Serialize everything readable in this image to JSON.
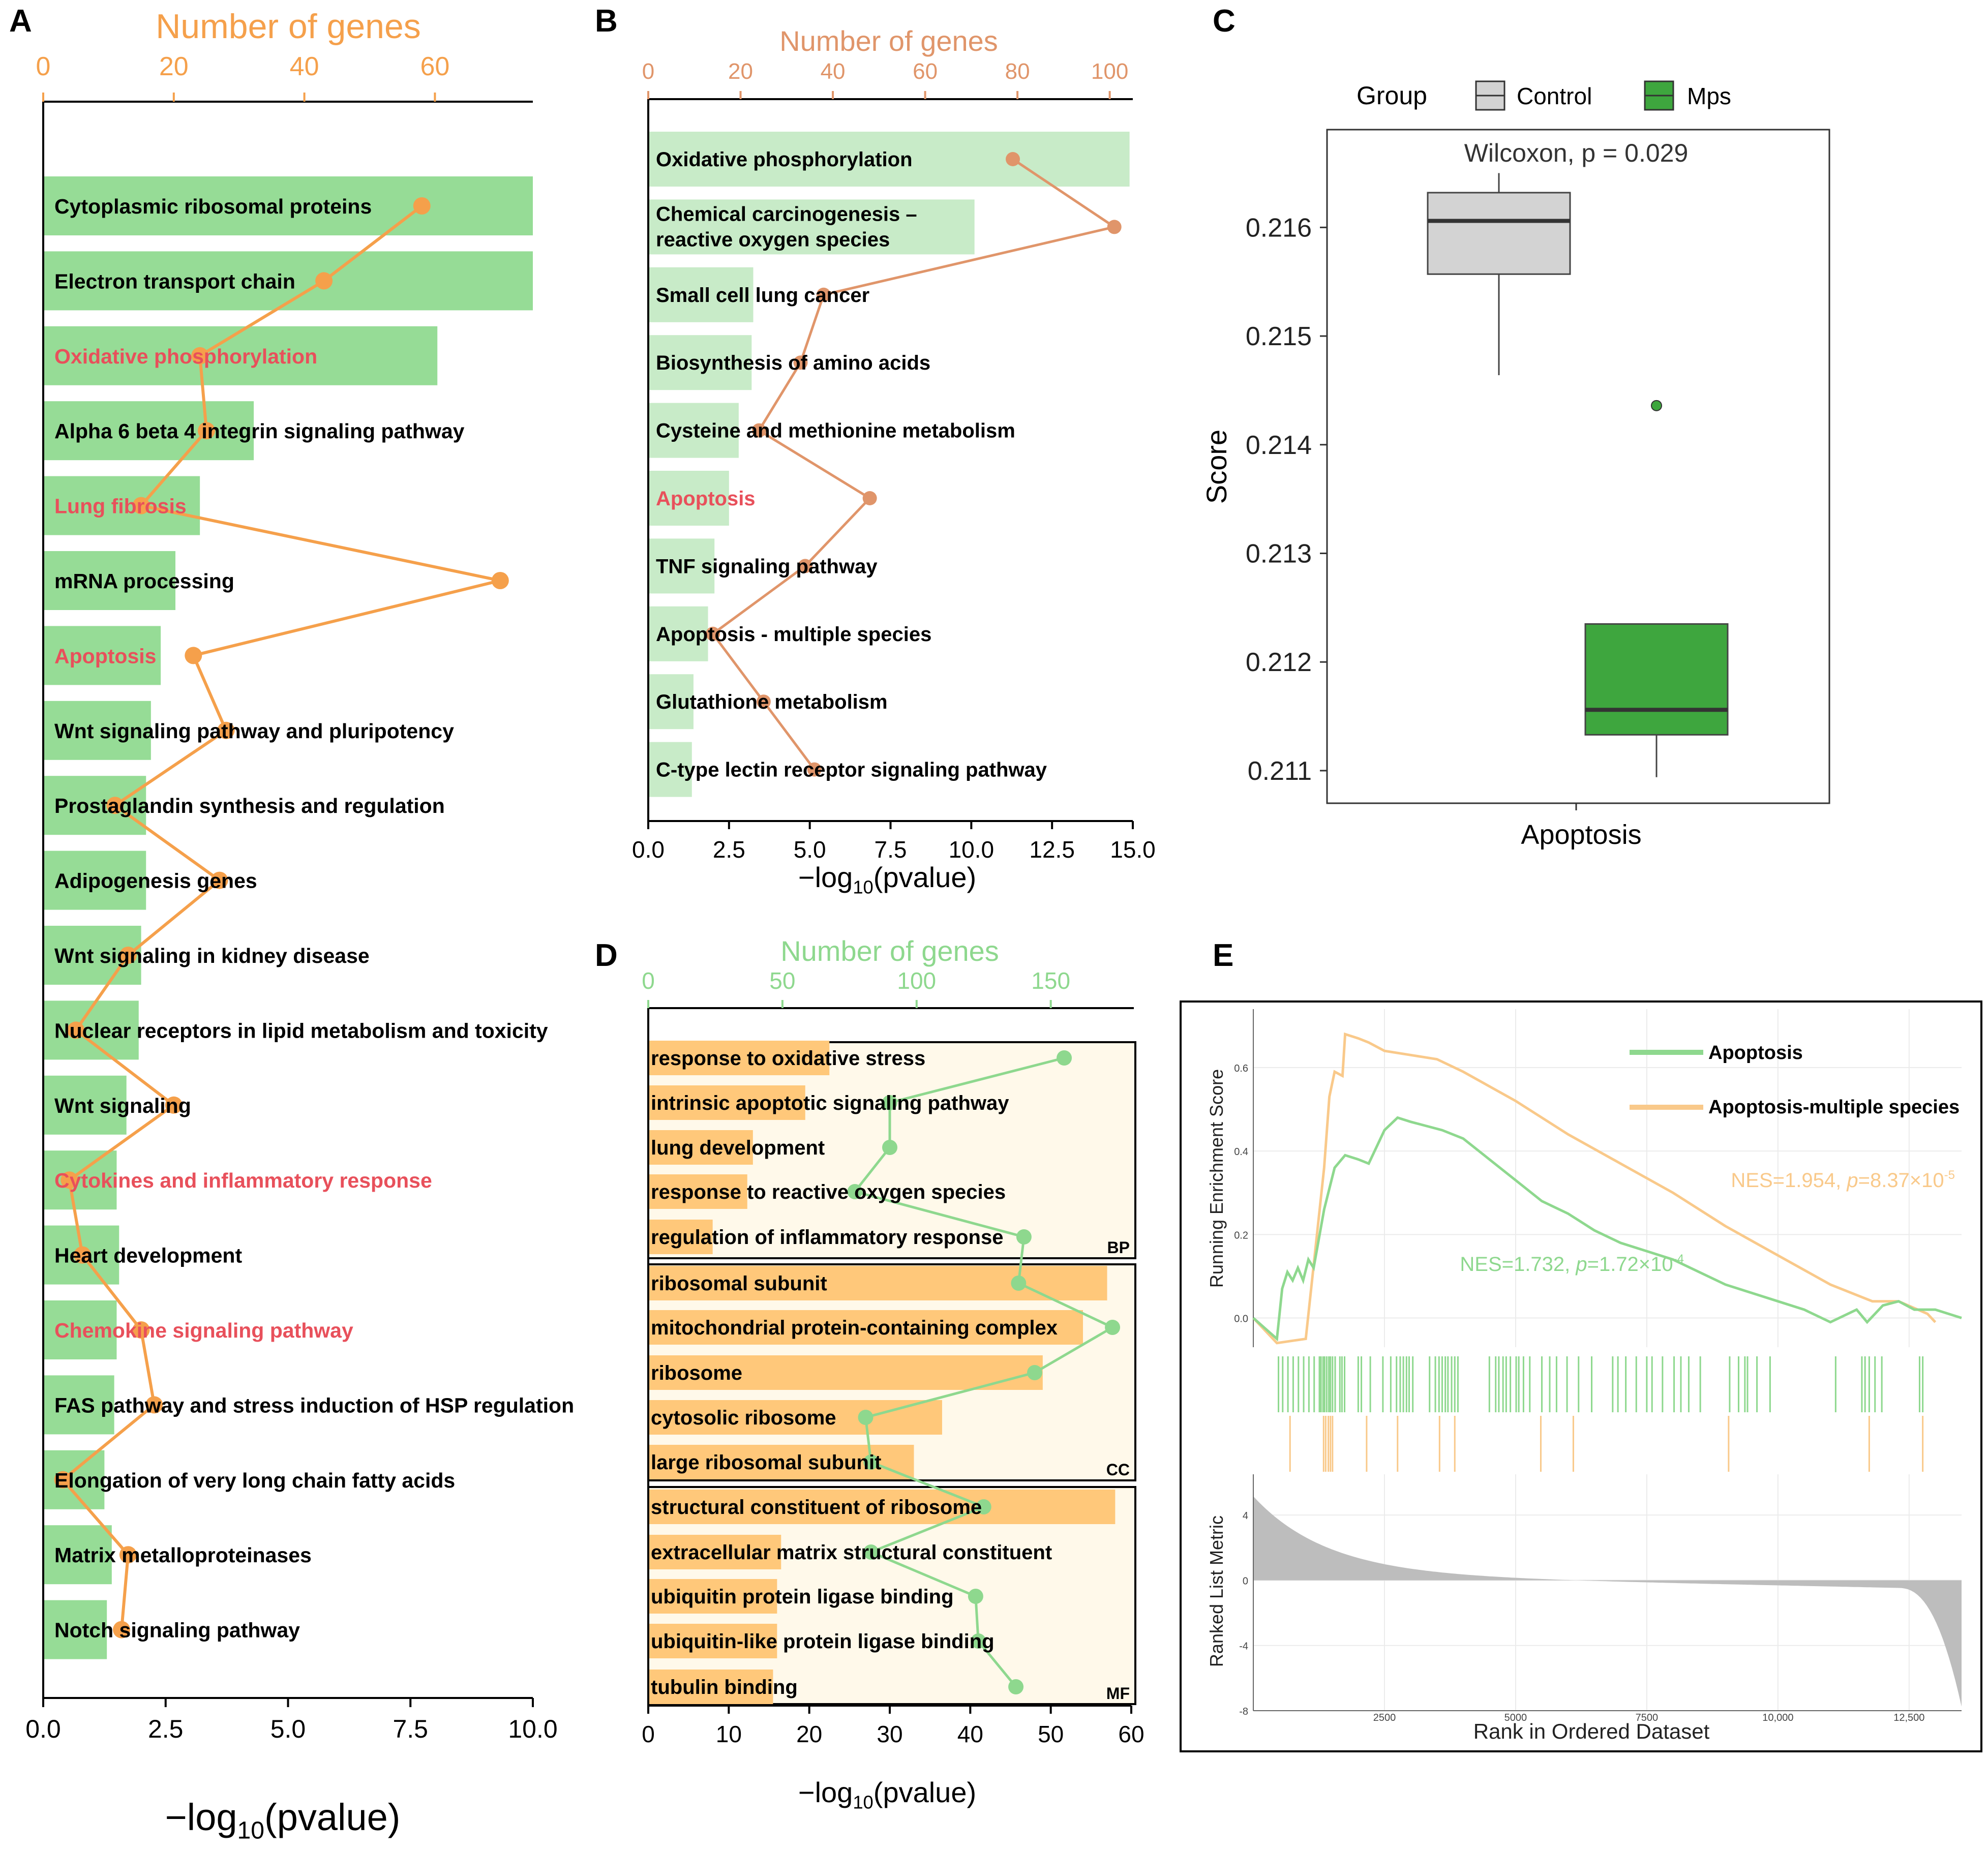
{
  "panels": {
    "A": {
      "letter": "A"
    },
    "B": {
      "letter": "B"
    },
    "C": {
      "letter": "C"
    },
    "D": {
      "letter": "D"
    },
    "E": {
      "letter": "E"
    }
  },
  "colors": {
    "bar_green": "#96DC96",
    "bar_green_light": "#C8EBC8",
    "bar_orange": "#FFC87A",
    "line_orange": "#F5A04B",
    "line_orange_b": "#E0956A",
    "line_green": "#8ED88E",
    "highlight_red": "#E8505B",
    "box_grey": "#D3D3D3",
    "box_green": "#3EA63E",
    "panel_d_bg": "#FFF9EA",
    "gsea_green": "#8ED88E",
    "gsea_orange": "#F9C98A"
  },
  "chart_data": [
    {
      "id": "A",
      "type": "bar",
      "orientation": "horizontal",
      "xlabel": "−log10(pvalue)",
      "top_axis_label": "Number of genes",
      "xlim": [
        0,
        10
      ],
      "x_ticks": [
        "0.0",
        "2.5",
        "5.0",
        "7.5",
        "10.0"
      ],
      "top_lim": [
        0,
        75
      ],
      "top_ticks": [
        "0",
        "20",
        "40",
        "60"
      ],
      "categories": [
        "Cytoplasmic ribosomal proteins",
        "Electron transport chain",
        "Oxidative phosphorylation",
        "Alpha 6 beta 4 integrin signaling pathway",
        "Lung fibrosis",
        "mRNA processing",
        "Apoptosis",
        "Wnt signaling pathway and pluripotency",
        "Prostaglandin synthesis and regulation",
        "Adipogenesis genes",
        "Wnt signaling in kidney disease",
        "Nuclear receptors in lipid metabolism and toxicity",
        "Wnt signaling",
        "Cytokines and inflammatory response",
        "Heart development",
        "Chemokine signaling pathway",
        "FAS pathway and stress induction of HSP regulation",
        "Elongation of very long chain fatty acids",
        "Matrix metalloproteinases",
        "Notch signaling pathway"
      ],
      "highlighted": [
        false,
        false,
        true,
        false,
        true,
        false,
        true,
        false,
        false,
        false,
        false,
        false,
        false,
        true,
        false,
        true,
        false,
        false,
        false,
        false
      ],
      "series": [
        {
          "name": "−log10(pvalue)",
          "values": [
            10.0,
            10.0,
            8.05,
            4.3,
            3.2,
            2.7,
            2.4,
            2.2,
            2.1,
            2.1,
            2.0,
            1.95,
            1.7,
            1.5,
            1.55,
            1.5,
            1.45,
            1.25,
            1.4,
            1.3
          ]
        },
        {
          "name": "Number of genes",
          "values": [
            58,
            43,
            24,
            25,
            15,
            70,
            23,
            28,
            11,
            27,
            13,
            5,
            20,
            4,
            6,
            15,
            17,
            3,
            13,
            12
          ]
        }
      ]
    },
    {
      "id": "B",
      "type": "bar",
      "orientation": "horizontal",
      "xlabel": "−log10(pvalue)",
      "top_axis_label": "Number of genes",
      "xlim": [
        0,
        15
      ],
      "x_ticks": [
        "0.0",
        "2.5",
        "5.0",
        "7.5",
        "10.0",
        "12.5",
        "15.0"
      ],
      "top_lim": [
        0,
        105
      ],
      "top_ticks": [
        "0",
        "20",
        "40",
        "60",
        "80",
        "100"
      ],
      "categories": [
        "Oxidative phosphorylation",
        "Chemical carcinogenesis –\nreactive oxygen species",
        "Small cell lung cancer",
        "Biosynthesis of amino acids",
        "Cysteine and methionine metabolism",
        "Apoptosis",
        "TNF signaling pathway",
        "Apoptosis - multiple species",
        "Glutathione metabolism",
        "C-type lectin receptor signaling pathway"
      ],
      "highlighted": [
        false,
        false,
        false,
        false,
        false,
        true,
        false,
        false,
        false,
        false
      ],
      "series": [
        {
          "name": "−log10(pvalue)",
          "values": [
            14.9,
            10.1,
            3.25,
            3.2,
            2.8,
            2.5,
            2.05,
            1.85,
            1.4,
            1.35
          ]
        },
        {
          "name": "Number of genes",
          "values": [
            79,
            101,
            38,
            33,
            24,
            48,
            34,
            14,
            25,
            36
          ]
        }
      ]
    },
    {
      "id": "C",
      "type": "box",
      "ylabel": "Score",
      "xlabel": "Apoptosis",
      "legend_title": "Group",
      "annotation": "Wilcoxon, p = 0.029",
      "ylim": [
        0.2107,
        0.2169
      ],
      "y_ticks": [
        "0.211",
        "0.212",
        "0.213",
        "0.214",
        "0.215",
        "0.216"
      ],
      "y_tick_values": [
        0.211,
        0.212,
        0.213,
        0.214,
        0.215,
        0.216
      ],
      "groups": [
        {
          "name": "Control",
          "min": 0.21464,
          "q1": 0.21557,
          "median": 0.21606,
          "q3": 0.21632,
          "max": 0.2165,
          "outliers": []
        },
        {
          "name": "Mps",
          "min": 0.21094,
          "q1": 0.21133,
          "median": 0.21156,
          "q3": 0.21235,
          "max": 0.21235,
          "outliers": [
            0.21436
          ]
        }
      ]
    },
    {
      "id": "D",
      "type": "bar",
      "orientation": "horizontal",
      "xlabel": "−log10(pvalue)",
      "top_axis_label": "Number of genes",
      "xlim": [
        0,
        60
      ],
      "x_ticks": [
        "0",
        "10",
        "20",
        "30",
        "40",
        "50",
        "60"
      ],
      "top_lim": [
        0,
        180
      ],
      "top_ticks": [
        "0",
        "50",
        "100",
        "150"
      ],
      "groups": [
        {
          "label": "BP",
          "categories": [
            "response to oxidative stress",
            "intrinsic apoptotic signaling pathway",
            "lung development",
            "response to reactive oxygen species",
            "regulation of inflammatory response"
          ],
          "values": [
            22.5,
            19.5,
            13.0,
            12.3,
            8.0
          ],
          "genes": [
            155,
            90,
            90,
            77,
            140
          ]
        },
        {
          "label": "CC",
          "categories": [
            "ribosomal subunit",
            "mitochondrial protein-containing complex",
            "ribosome",
            "cytosolic ribosome",
            "large ribosomal subunit"
          ],
          "values": [
            57.0,
            54.0,
            49.0,
            36.5,
            33.0
          ],
          "genes": [
            138,
            173,
            144,
            81,
            83
          ]
        },
        {
          "label": "MF",
          "categories": [
            "structural constituent of ribosome",
            "extracellular matrix structural constituent",
            "ubiquitin protein ligase binding",
            "ubiquitin-like protein ligase binding",
            "tubulin binding"
          ],
          "values": [
            58.0,
            16.5,
            16.0,
            16.0,
            15.5
          ],
          "genes": [
            125,
            83,
            122,
            123,
            137
          ]
        }
      ]
    },
    {
      "id": "E",
      "type": "line",
      "ylabel_top": "Running Enrichment Score",
      "ylabel_bottom": "Ranked List Metric",
      "xlabel": "Rank in Ordered Dataset",
      "x_ticks": [
        "2500",
        "5000",
        "7500",
        "10,000",
        "12,500"
      ],
      "x_tick_values": [
        2500,
        5000,
        7500,
        10000,
        12500
      ],
      "xlim": [
        0,
        13500
      ],
      "es_ticks": [
        "0.0",
        "0.2",
        "0.4",
        "0.6"
      ],
      "es_tick_values": [
        0.0,
        0.2,
        0.4,
        0.6
      ],
      "es_lim": [
        -0.07,
        0.74
      ],
      "metric_ticks": [
        "4",
        "0",
        "-4",
        "-8"
      ],
      "metric_tick_values": [
        4,
        0,
        -4,
        -8
      ],
      "metric_lim": [
        -8,
        6.5
      ],
      "series": [
        {
          "name": "Apoptosis",
          "nes_text": "NES=1.732, ",
          "p_sym": "p",
          "p_text": "=1.72×10",
          "exp": "-4"
        },
        {
          "name": "Apoptosis-multiple species",
          "nes_text": "NES=1.954, ",
          "p_sym": "p",
          "p_text": "=8.37×10",
          "exp": "-5"
        }
      ],
      "apoptosis_points": [
        [
          0,
          0.0
        ],
        [
          450,
          -0.05
        ],
        [
          550,
          0.07
        ],
        [
          650,
          0.11
        ],
        [
          750,
          0.09
        ],
        [
          850,
          0.12
        ],
        [
          950,
          0.09
        ],
        [
          1050,
          0.14
        ],
        [
          1150,
          0.12
        ],
        [
          1250,
          0.19
        ],
        [
          1350,
          0.26
        ],
        [
          1450,
          0.31
        ],
        [
          1550,
          0.36
        ],
        [
          1750,
          0.39
        ],
        [
          2000,
          0.38
        ],
        [
          2200,
          0.37
        ],
        [
          2500,
          0.45
        ],
        [
          2750,
          0.48
        ],
        [
          3000,
          0.47
        ],
        [
          3300,
          0.46
        ],
        [
          3600,
          0.45
        ],
        [
          4000,
          0.43
        ],
        [
          4500,
          0.38
        ],
        [
          5000,
          0.33
        ],
        [
          5500,
          0.28
        ],
        [
          6000,
          0.25
        ],
        [
          6500,
          0.21
        ],
        [
          7000,
          0.18
        ],
        [
          7500,
          0.16
        ],
        [
          8000,
          0.14
        ],
        [
          8500,
          0.11
        ],
        [
          9000,
          0.08
        ],
        [
          9500,
          0.06
        ],
        [
          10000,
          0.04
        ],
        [
          10500,
          0.02
        ],
        [
          11000,
          -0.01
        ],
        [
          11500,
          0.02
        ],
        [
          11700,
          -0.01
        ],
        [
          12000,
          0.03
        ],
        [
          12300,
          0.04
        ],
        [
          12600,
          0.02
        ],
        [
          13000,
          0.02
        ],
        [
          13500,
          0.0
        ]
      ],
      "multi_points": [
        [
          0,
          0.0
        ],
        [
          450,
          -0.06
        ],
        [
          1000,
          -0.05
        ],
        [
          1350,
          0.36
        ],
        [
          1450,
          0.53
        ],
        [
          1550,
          0.59
        ],
        [
          1700,
          0.58
        ],
        [
          1750,
          0.68
        ],
        [
          2000,
          0.67
        ],
        [
          2200,
          0.66
        ],
        [
          2500,
          0.64
        ],
        [
          3000,
          0.63
        ],
        [
          3500,
          0.62
        ],
        [
          4000,
          0.59
        ],
        [
          5000,
          0.52
        ],
        [
          6000,
          0.44
        ],
        [
          7000,
          0.37
        ],
        [
          8000,
          0.3
        ],
        [
          9000,
          0.22
        ],
        [
          10000,
          0.15
        ],
        [
          11000,
          0.08
        ],
        [
          11800,
          0.04
        ],
        [
          12300,
          0.04
        ],
        [
          12850,
          0.01
        ],
        [
          13000,
          -0.01
        ]
      ],
      "apoptosis_hits": [
        480,
        560,
        660,
        760,
        860,
        960,
        1060,
        1160,
        1260,
        1290,
        1330,
        1360,
        1400,
        1440,
        1470,
        1510,
        1560,
        1650,
        1690,
        1740,
        2000,
        2060,
        2230,
        2470,
        2620,
        2730,
        2800,
        2860,
        2920,
        2970,
        3040,
        3360,
        3470,
        3540,
        3600,
        3660,
        3710,
        3780,
        3840,
        3900,
        4500,
        4620,
        4680,
        4760,
        4820,
        4900,
        5010,
        5060,
        5150,
        5270,
        5500,
        5650,
        5780,
        5980,
        6200,
        6450,
        6850,
        6950,
        7100,
        7300,
        7500,
        7600,
        7800,
        8020,
        8150,
        8300,
        8520,
        9080,
        9250,
        9370,
        9420,
        9600,
        9850,
        11100,
        11600,
        11660,
        11740,
        11850,
        11980,
        12700,
        12760
      ],
      "multi_hits": [
        700,
        1340,
        1380,
        1430,
        1470,
        1510,
        2160,
        2750,
        3550,
        3840,
        5480,
        6100,
        9060,
        11740,
        12760
      ]
    }
  ]
}
